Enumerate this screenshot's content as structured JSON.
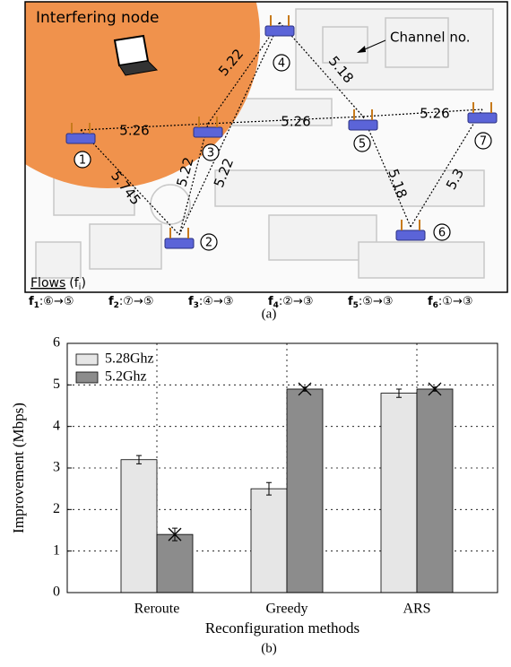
{
  "diagram": {
    "annotations": {
      "interferer": "Interfering node",
      "channel": "Channel no."
    },
    "nodes": [
      "1",
      "2",
      "3",
      "4",
      "5",
      "6",
      "7"
    ],
    "link_labels": [
      "5.26",
      "5.22",
      "5.18",
      "5.26",
      "5.26",
      "5.745",
      "5.22",
      "5.22",
      "5.18",
      "5.3"
    ],
    "flows_legend": {
      "heading": "Flows",
      "symbol": "(f",
      "sub": "i",
      "close": ")"
    },
    "flows": [
      {
        "name": "f",
        "sub": "1",
        "route": ":⑥→⑤"
      },
      {
        "name": "f",
        "sub": "2",
        "route": ":⑦→⑤"
      },
      {
        "name": "f",
        "sub": "3",
        "route": ":④→③"
      },
      {
        "name": "f",
        "sub": "4",
        "route": ":②→③"
      },
      {
        "name": "f",
        "sub": "5",
        "route": ":⑤→③"
      },
      {
        "name": "f",
        "sub": "6",
        "route": ":①→③"
      }
    ],
    "caption": "(a)"
  },
  "chart_data": {
    "type": "bar",
    "categories": [
      "Reroute",
      "Greedy",
      "ARS"
    ],
    "series": [
      {
        "name": "5.28Ghz",
        "color": "#e6e6e6",
        "values": [
          3.2,
          2.5,
          4.8
        ],
        "errors": [
          0.1,
          0.15,
          0.1
        ]
      },
      {
        "name": "5.2Ghz",
        "color": "#8c8c8c",
        "values": [
          1.4,
          4.9,
          4.9
        ],
        "errors": [
          0.15,
          0.05,
          0.05
        ],
        "marker": "x"
      }
    ],
    "xlabel": "Reconfiguration methods",
    "ylabel": "Improvement (Mbps)",
    "ylim": [
      0,
      6
    ],
    "yticks": [
      0,
      1,
      2,
      3,
      4,
      5,
      6
    ],
    "grid": true,
    "legend": "upper-left",
    "caption": "(b)"
  }
}
